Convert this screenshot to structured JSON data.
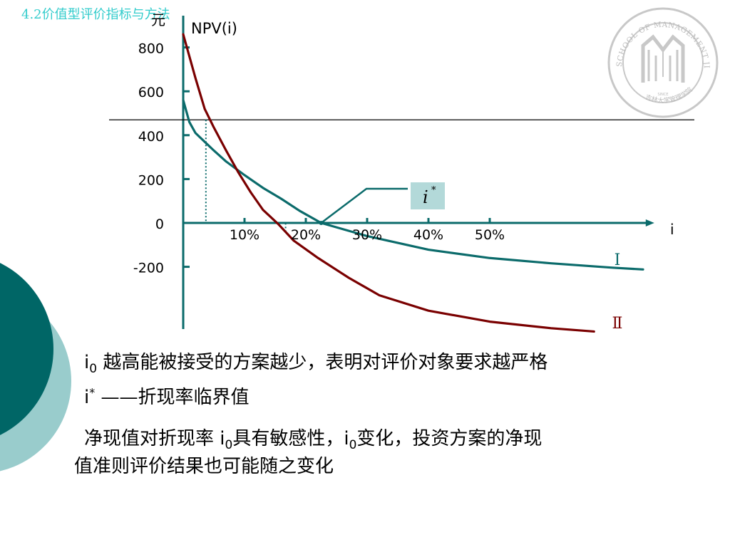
{
  "slide": {
    "title": "4.2价值型评价指标与方法",
    "logo": {
      "text": "SCHOOL OF MANAGEMENT JILIN UNIVERSITY",
      "subtext": "吉林大学管理学院",
      "note": "SINCE",
      "color": "#bbbbbb"
    },
    "lines": [
      {
        "pre": "i",
        "sub": "0",
        "post": " 越高能被接受的方案越少，表明对评价对象要求越严格"
      },
      {
        "pre": "i",
        "sup": "*",
        "post": " ——折现率临界值"
      },
      {
        "pre": "净现值对折现率 ",
        "mid": "i",
        "sub": "0",
        "mid2": "具有敏感性，",
        "mid3": "i",
        "sub2": "0",
        "post": "变化，投资方案的净现"
      },
      {
        "pre": "值准则评价结果也可能随之变化"
      }
    ],
    "colors": {
      "deco_dark": "#006666",
      "deco_light": "#99cccc",
      "title": "#33cccc"
    }
  },
  "chart_data": {
    "type": "line",
    "ylabel": "NPV(i)",
    "yunit": "元",
    "xlabel": "i",
    "yticks": [
      -200,
      0,
      200,
      400,
      600,
      800
    ],
    "xticks": [
      {
        "value": 10,
        "label": "10%"
      },
      {
        "value": 20,
        "label": "20%"
      },
      {
        "value": 30,
        "label": "30%"
      },
      {
        "value": 40,
        "label": "40%"
      },
      {
        "value": 50,
        "label": "50%"
      }
    ],
    "xlim": [
      0,
      78
    ],
    "ylim": [
      -480,
      880
    ],
    "annotation": {
      "label": "i",
      "sup": "*",
      "x": 22.5,
      "y": 0,
      "fill": "#b3d9d9"
    },
    "series": [
      {
        "name": "I",
        "color": "#0b6b6b",
        "points": [
          [
            0,
            560
          ],
          [
            0.5,
            510
          ],
          [
            1,
            460
          ],
          [
            2,
            410
          ],
          [
            3.5,
            370
          ],
          [
            5,
            330
          ],
          [
            7,
            280
          ],
          [
            10,
            218
          ],
          [
            13,
            160
          ],
          [
            16,
            110
          ],
          [
            19,
            55
          ],
          [
            22.5,
            0
          ],
          [
            30,
            -60
          ],
          [
            40,
            -122
          ],
          [
            50,
            -160
          ],
          [
            60,
            -184
          ],
          [
            70,
            -204
          ],
          [
            75,
            -212
          ]
        ]
      },
      {
        "name": "Ⅱ",
        "color": "#7a0000",
        "points": [
          [
            0,
            860
          ],
          [
            1,
            760
          ],
          [
            2,
            660
          ],
          [
            3.5,
            520
          ],
          [
            5,
            435
          ],
          [
            7,
            330
          ],
          [
            9,
            230
          ],
          [
            11,
            140
          ],
          [
            13,
            60
          ],
          [
            15.5,
            -5
          ],
          [
            18,
            -80
          ],
          [
            22,
            -160
          ],
          [
            27,
            -250
          ],
          [
            32,
            -330
          ],
          [
            40,
            -400
          ],
          [
            50,
            -450
          ],
          [
            60,
            -480
          ],
          [
            67,
            -495
          ]
        ]
      }
    ],
    "threshold_line": {
      "y": 470
    },
    "dotted_guides": [
      {
        "x": 3.7,
        "y": 470
      },
      {
        "x": 16.7,
        "y": -40
      }
    ]
  }
}
